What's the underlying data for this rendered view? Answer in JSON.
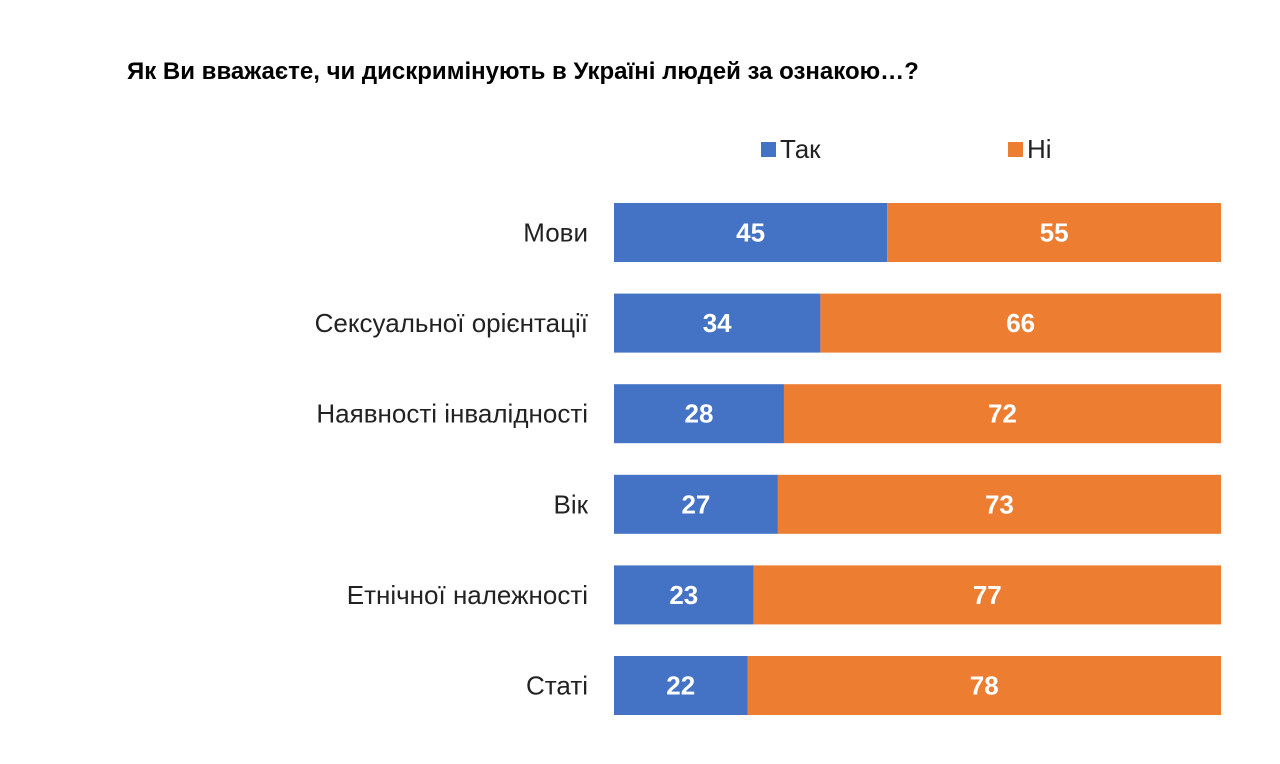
{
  "chart_data": {
    "type": "bar",
    "orientation": "horizontal",
    "stacked": true,
    "title": "Як Ви вважаєте, чи дискримінують в Україні людей за ознакою…?",
    "categories": [
      "Мови",
      "Сексуальної орієнтації",
      "Наявності інвалідності",
      "Вік",
      "Етнічної належності",
      "Статі"
    ],
    "series": [
      {
        "name": "Так",
        "color": "#4472C4",
        "values": [
          45,
          34,
          28,
          27,
          23,
          22
        ]
      },
      {
        "name": "Ні",
        "color": "#ED7D31",
        "values": [
          55,
          66,
          72,
          73,
          77,
          78
        ]
      }
    ],
    "xlim": [
      0,
      100
    ],
    "grid": false,
    "legend": "top",
    "data_labels": true
  }
}
